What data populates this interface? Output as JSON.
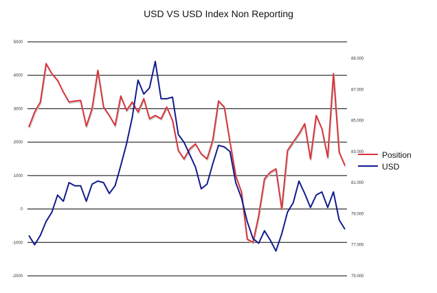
{
  "chart_data": {
    "type": "line",
    "title": "USD VS USD Index Non Reporting",
    "xlabel": "",
    "ylabel": "",
    "grid": true,
    "legend_placement": "right",
    "left_axis": {
      "ylim": [
        -2000,
        5000
      ],
      "ticks": [
        "5000",
        "4000",
        "3000",
        "2000",
        "1000",
        "0",
        "-1000",
        "-2000"
      ]
    },
    "right_axis": {
      "ylim": [
        75,
        90
      ],
      "ticks": [
        "89.000",
        "87.000",
        "85.000",
        "83.000",
        "81.000",
        "79.000",
        "77.000",
        "75.000"
      ]
    },
    "series": [
      {
        "name": "Position",
        "axis": "left",
        "color": "#d8343b",
        "values": [
          2450,
          2900,
          3200,
          4350,
          4050,
          3850,
          3500,
          3200,
          3230,
          3250,
          2480,
          3000,
          4150,
          3050,
          2800,
          2500,
          3380,
          2950,
          3200,
          2900,
          3300,
          2700,
          2800,
          2700,
          3050,
          2650,
          1750,
          1500,
          1800,
          1950,
          1650,
          1500,
          2050,
          3230,
          3050,
          2000,
          1000,
          500,
          -900,
          -1000,
          -200,
          900,
          1100,
          1200,
          0,
          1750,
          2000,
          2250,
          2550,
          1500,
          2800,
          2400,
          1550,
          4050,
          1700,
          1300
        ]
      },
      {
        "name": "USD",
        "axis": "right",
        "color": "#0f1a8c",
        "values": [
          77.6,
          77.0,
          77.6,
          78.5,
          79.1,
          80.2,
          79.8,
          81.0,
          80.8,
          80.8,
          79.8,
          80.9,
          81.1,
          81.0,
          80.3,
          80.8,
          82.1,
          83.5,
          85.2,
          87.6,
          86.7,
          87.1,
          88.8,
          86.4,
          86.4,
          86.5,
          84.1,
          83.6,
          82.8,
          82.0,
          80.6,
          80.9,
          82.2,
          83.4,
          83.3,
          83.0,
          81.0,
          80.0,
          78.5,
          77.4,
          77.1,
          77.9,
          77.3,
          76.6,
          77.7,
          79.1,
          79.7,
          81.1,
          80.3,
          79.4,
          80.2,
          80.4,
          79.4,
          80.4,
          78.6,
          78.0
        ]
      }
    ]
  }
}
